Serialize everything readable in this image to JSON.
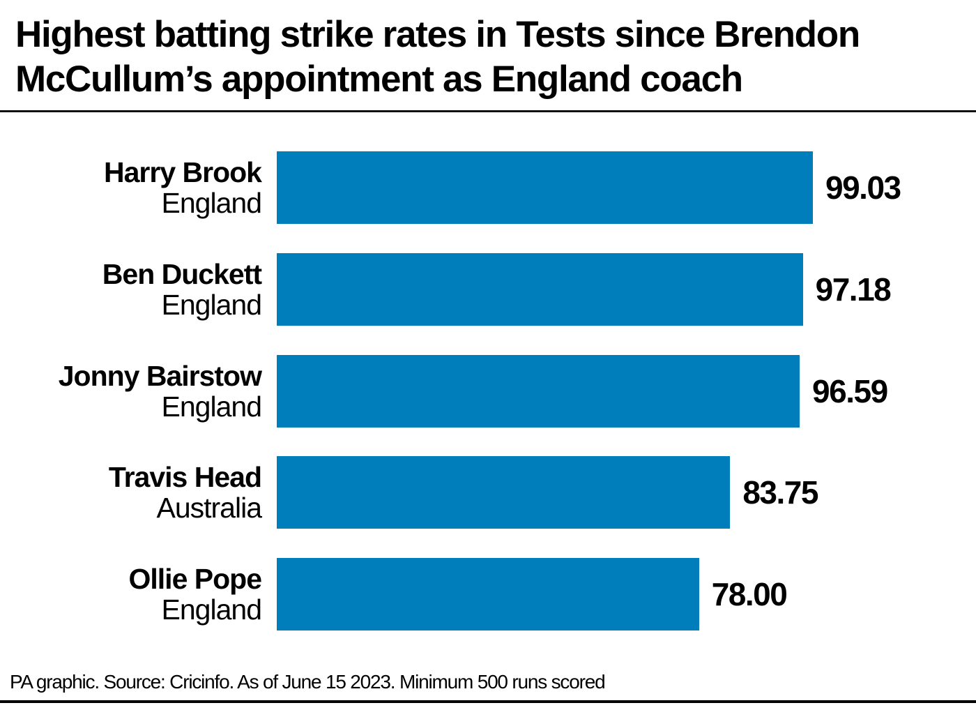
{
  "chart_data": {
    "type": "bar",
    "orientation": "horizontal",
    "title": "Highest batting strike rates in Tests since Brendon McCullum’s appointment as England coach",
    "categories": [
      {
        "name": "Harry Brook",
        "team": "England"
      },
      {
        "name": "Ben Duckett",
        "team": "England"
      },
      {
        "name": "Jonny Bairstow",
        "team": "England"
      },
      {
        "name": "Travis Head",
        "team": "Australia"
      },
      {
        "name": "Ollie Pope",
        "team": "England"
      }
    ],
    "values": [
      99.03,
      97.18,
      96.59,
      83.75,
      78.0
    ],
    "value_labels": [
      "99.03",
      "97.18",
      "96.59",
      "83.75",
      "78.00"
    ],
    "xlim": [
      0,
      99.03
    ],
    "grid": false,
    "bar_color": "#007DBB",
    "source": "PA graphic. Source: Cricinfo. As of June 15 2023. Minimum 500 runs scored"
  }
}
